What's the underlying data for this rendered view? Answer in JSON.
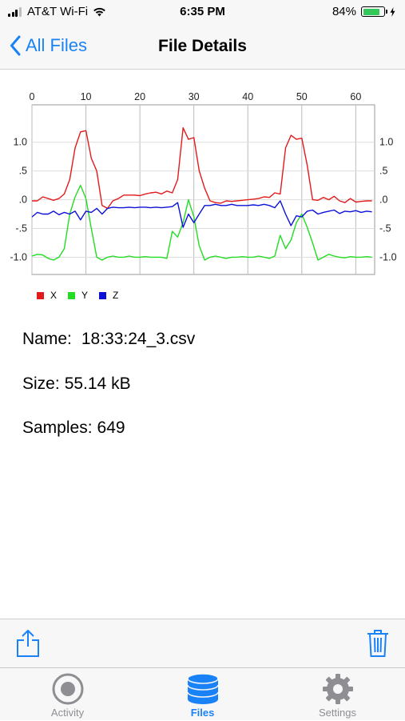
{
  "status_bar": {
    "carrier": "AT&T Wi-Fi",
    "time": "6:35 PM",
    "battery_percent_label": "84%",
    "battery_level": 0.84,
    "battery_color": "#34c759"
  },
  "nav": {
    "back_label": "All Files",
    "title": "File Details"
  },
  "chart_data": {
    "type": "line",
    "x_ticks": [
      "0",
      "10",
      "20",
      "30",
      "40",
      "50",
      "60"
    ],
    "y_ticks": [
      "1.0",
      ".5",
      ".0",
      "-.5",
      "-1.0"
    ],
    "xlim": [
      0,
      63.5
    ],
    "ylim": [
      -1.3,
      1.65
    ],
    "grid": true,
    "legend_position": "bottom-left",
    "series": [
      {
        "name": "X",
        "color": "#e31a1c",
        "x": [
          0,
          1,
          2,
          3,
          4,
          5,
          6,
          7,
          8,
          9,
          10,
          11,
          12,
          13,
          14,
          15,
          16,
          17,
          18,
          19,
          20,
          21,
          22,
          23,
          24,
          25,
          26,
          27,
          28,
          29,
          30,
          31,
          32,
          33,
          34,
          35,
          36,
          37,
          38,
          39,
          40,
          41,
          42,
          43,
          44,
          45,
          46,
          47,
          48,
          49,
          50,
          51,
          52,
          53,
          54,
          55,
          56,
          57,
          58,
          59,
          60,
          61,
          62,
          63
        ],
        "y": [
          -0.02,
          -0.02,
          0.05,
          0.02,
          -0.01,
          0.02,
          0.1,
          0.35,
          0.9,
          1.18,
          1.2,
          0.72,
          0.5,
          -0.1,
          -0.15,
          -0.02,
          0.02,
          0.08,
          0.08,
          0.08,
          0.07,
          0.1,
          0.12,
          0.13,
          0.1,
          0.15,
          0.12,
          0.35,
          1.25,
          1.05,
          1.08,
          0.5,
          0.2,
          -0.02,
          -0.05,
          -0.06,
          -0.02,
          -0.03,
          -0.02,
          -0.01,
          0.0,
          0.01,
          0.02,
          0.05,
          0.04,
          0.12,
          0.1,
          0.9,
          1.12,
          1.05,
          1.07,
          0.6,
          0.0,
          -0.01,
          0.04,
          0.0,
          0.06,
          -0.02,
          -0.05,
          0.02,
          -0.04,
          -0.03,
          -0.02,
          -0.02
        ]
      },
      {
        "name": "Y",
        "color": "#22dd22",
        "x": [
          0,
          1,
          2,
          3,
          4,
          5,
          6,
          7,
          8,
          9,
          10,
          11,
          12,
          13,
          14,
          15,
          16,
          17,
          18,
          19,
          20,
          21,
          22,
          23,
          24,
          25,
          26,
          27,
          28,
          29,
          30,
          31,
          32,
          33,
          34,
          35,
          36,
          37,
          38,
          39,
          40,
          41,
          42,
          43,
          44,
          45,
          46,
          47,
          48,
          49,
          50,
          51,
          52,
          53,
          54,
          55,
          56,
          57,
          58,
          59,
          60,
          61,
          62,
          63
        ],
        "y": [
          -0.98,
          -0.95,
          -0.96,
          -1.02,
          -1.05,
          -1.0,
          -0.85,
          -0.25,
          0.05,
          0.25,
          0.02,
          -0.5,
          -1.0,
          -1.05,
          -1.0,
          -0.98,
          -1.0,
          -1.0,
          -0.98,
          -1.0,
          -1.0,
          -0.99,
          -1.0,
          -1.0,
          -1.0,
          -1.02,
          -0.55,
          -0.65,
          -0.4,
          0.0,
          -0.3,
          -0.8,
          -1.05,
          -1.0,
          -0.98,
          -1.0,
          -1.02,
          -1.0,
          -1.0,
          -0.99,
          -1.0,
          -1.0,
          -0.98,
          -1.0,
          -1.02,
          -0.98,
          -0.62,
          -0.85,
          -0.7,
          -0.4,
          -0.25,
          -0.48,
          -0.75,
          -1.05,
          -1.0,
          -0.95,
          -0.98,
          -1.0,
          -1.01,
          -0.99,
          -1.0,
          -1.0,
          -0.99,
          -1.0
        ]
      },
      {
        "name": "Z",
        "color": "#0d11d8",
        "x": [
          0,
          1,
          2,
          3,
          4,
          5,
          6,
          7,
          8,
          9,
          10,
          11,
          12,
          13,
          14,
          15,
          16,
          17,
          18,
          19,
          20,
          21,
          22,
          23,
          24,
          25,
          26,
          27,
          28,
          29,
          30,
          31,
          32,
          33,
          34,
          35,
          36,
          37,
          38,
          39,
          40,
          41,
          42,
          43,
          44,
          45,
          46,
          47,
          48,
          49,
          50,
          51,
          52,
          53,
          54,
          55,
          56,
          57,
          58,
          59,
          60,
          61,
          62,
          63
        ],
        "y": [
          -0.3,
          -0.22,
          -0.25,
          -0.25,
          -0.2,
          -0.26,
          -0.22,
          -0.25,
          -0.2,
          -0.35,
          -0.2,
          -0.22,
          -0.15,
          -0.25,
          -0.15,
          -0.13,
          -0.14,
          -0.14,
          -0.13,
          -0.14,
          -0.13,
          -0.13,
          -0.14,
          -0.13,
          -0.14,
          -0.13,
          -0.12,
          -0.05,
          -0.48,
          -0.25,
          -0.4,
          -0.25,
          -0.1,
          -0.1,
          -0.08,
          -0.1,
          -0.1,
          -0.08,
          -0.1,
          -0.1,
          -0.1,
          -0.09,
          -0.1,
          -0.08,
          -0.1,
          -0.14,
          -0.02,
          -0.25,
          -0.45,
          -0.28,
          -0.3,
          -0.2,
          -0.18,
          -0.25,
          -0.22,
          -0.2,
          -0.18,
          -0.24,
          -0.2,
          -0.21,
          -0.19,
          -0.22,
          -0.2,
          -0.21
        ]
      }
    ]
  },
  "details": {
    "name_label": "Name:",
    "name_value": "18:33:24_3.csv",
    "size_label": "Size:",
    "size_value": "55.14 kB",
    "samples_label": "Samples:",
    "samples_value": "649"
  },
  "toolbar": {
    "share_icon": "share-icon",
    "trash_icon": "trash-icon"
  },
  "tabs": [
    {
      "label": "Activity",
      "icon": "record-icon",
      "active": false
    },
    {
      "label": "Files",
      "icon": "database-icon",
      "active": true
    },
    {
      "label": "Settings",
      "icon": "gear-icon",
      "active": false
    }
  ],
  "colors": {
    "accent": "#1a82f7",
    "inactive": "#8e8e93"
  }
}
